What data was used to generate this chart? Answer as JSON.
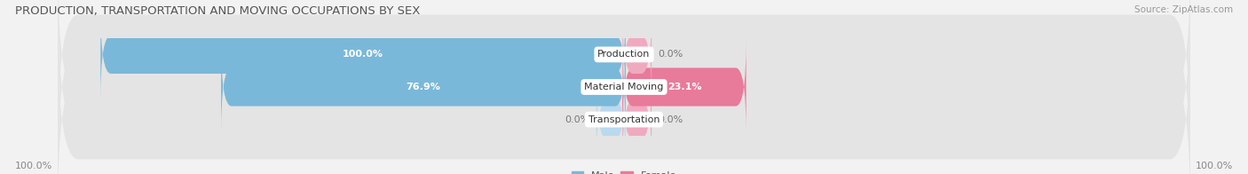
{
  "title": "PRODUCTION, TRANSPORTATION AND MOVING OCCUPATIONS BY SEX",
  "source": "Source: ZipAtlas.com",
  "categories": [
    "Transportation",
    "Material Moving",
    "Production"
  ],
  "male_values": [
    0.0,
    76.9,
    100.0
  ],
  "female_values": [
    0.0,
    23.1,
    0.0
  ],
  "male_color": "#7ab8d9",
  "female_color": "#e87a9a",
  "male_color_light": "#b8d9ee",
  "female_color_light": "#f0aabf",
  "male_label_color": "#ffffff",
  "female_label_color": "#ffffff",
  "bg_color": "#f2f2f2",
  "bar_bg_color": "#e4e4e4",
  "bar_height": 0.58,
  "male_legend_color": "#7ab8d9",
  "female_legend_color": "#e87a9a",
  "axis_label_left": "100.0%",
  "axis_label_right": "100.0%",
  "title_fontsize": 9.5,
  "label_fontsize": 8,
  "source_fontsize": 7.5,
  "xlim": 110,
  "stub_size": 5.0
}
